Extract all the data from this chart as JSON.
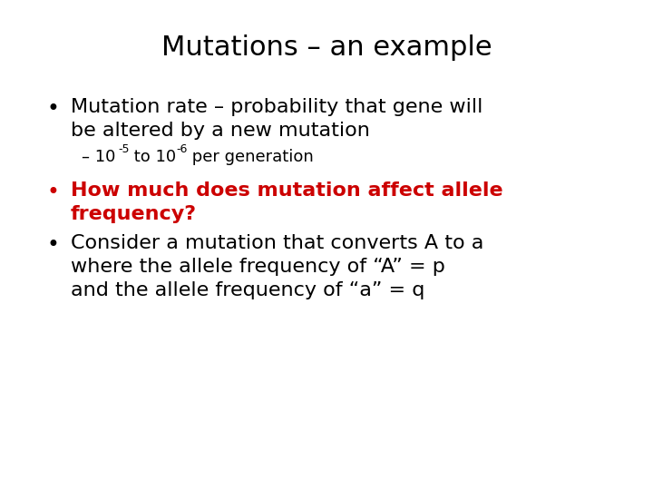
{
  "title": "Mutations – an example",
  "title_fontsize": 22,
  "title_color": "#000000",
  "background_color": "#ffffff",
  "bullet1_text1": "Mutation rate – probability that gene will",
  "bullet1_text2": "be altered by a new mutation",
  "bullet1_color": "#000000",
  "bullet1_fontsize": 16,
  "sub_bullet_base": "– 10",
  "sub_bullet_sup1": "-5",
  "sub_bullet_mid": " to 10",
  "sub_bullet_sup2": "-6",
  "sub_bullet_end": " per generation",
  "sub_bullet_color": "#000000",
  "sub_bullet_fontsize": 13,
  "sub_bullet_sup_fontsize": 9,
  "bullet2_text1": "How much does mutation affect allele",
  "bullet2_text2": "frequency?",
  "bullet2_color": "#cc0000",
  "bullet2_fontsize": 16,
  "bullet3_text1": "Consider a mutation that converts A to a",
  "bullet3_text2": "where the allele frequency of “A” = p",
  "bullet3_text3": "and the allele frequency of “a” = q",
  "bullet3_color": "#000000",
  "bullet3_fontsize": 16,
  "font_family": "DejaVu Sans"
}
